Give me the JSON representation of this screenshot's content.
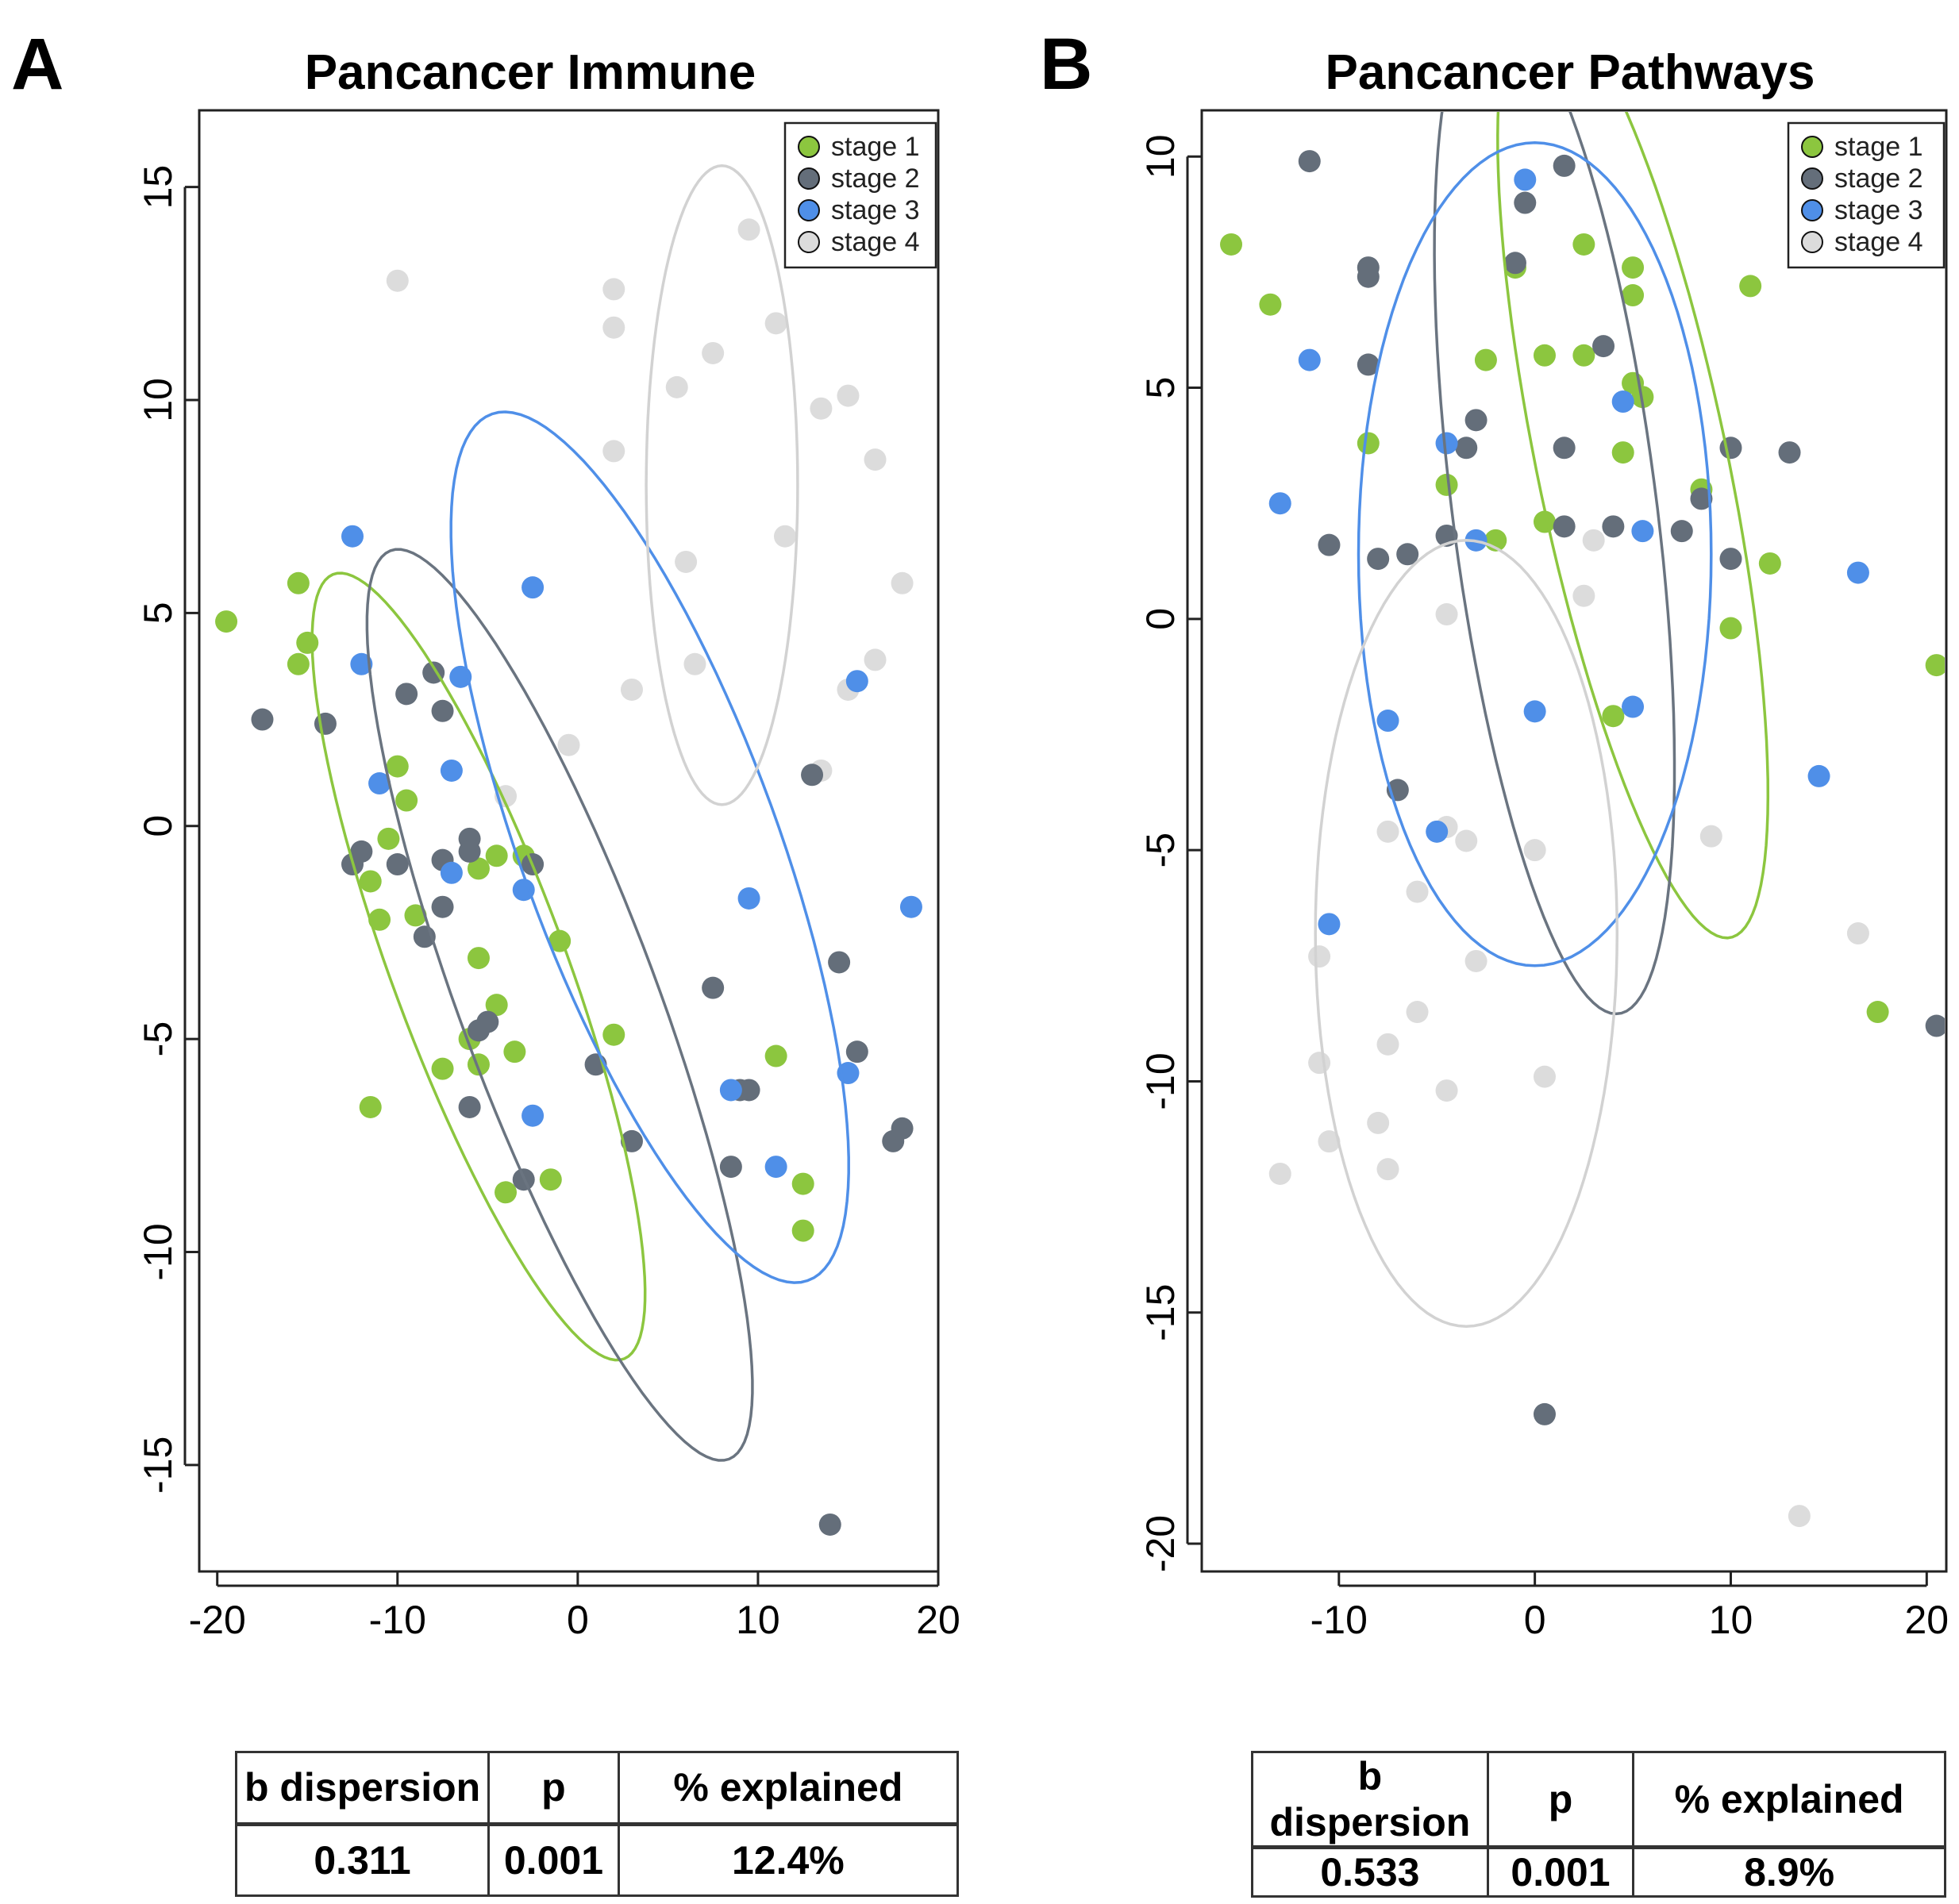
{
  "colors": {
    "stage 1": "#8cc63f",
    "stage 2": "#646e7a",
    "stage 3": "#4f8fe8",
    "stage 4": "#dcdcdc",
    "ellipse stage 1": "#8cc63f",
    "ellipse stage 2": "#6a7480",
    "ellipse stage 3": "#4f8fe8",
    "ellipse stage 4": "#d2d2d2"
  },
  "chart_data": [
    {
      "type": "scatter",
      "panel": "A",
      "title": "Pancancer Immune",
      "xlim": [
        -21,
        20
      ],
      "ylim": [
        -17.5,
        16.8
      ],
      "xticks": [
        -20,
        -10,
        0,
        10,
        20
      ],
      "xtick_labels": [
        "-20",
        "-10",
        "0",
        "10",
        "20"
      ],
      "yticks": [
        -15,
        -10,
        -5,
        0,
        5,
        10,
        15
      ],
      "ytick_labels": [
        "-15",
        "-10",
        "-5",
        "0",
        "5",
        "10",
        "15"
      ],
      "legend": {
        "position": "top-right",
        "entries": [
          "stage 1",
          "stage 2",
          "stage 3",
          "stage 4"
        ]
      },
      "series": [
        {
          "name": "stage 1",
          "points": [
            [
              -19.5,
              4.8
            ],
            [
              -15.5,
              5.7
            ],
            [
              -15,
              4.3
            ],
            [
              -15.5,
              3.8
            ],
            [
              -10,
              1.4
            ],
            [
              -9.5,
              0.6
            ],
            [
              -10.5,
              -0.3
            ],
            [
              -11.5,
              -1.3
            ],
            [
              -11,
              -2.2
            ],
            [
              -9,
              -2.1
            ],
            [
              -5.5,
              -1
            ],
            [
              -4.5,
              -0.7
            ],
            [
              -3,
              -0.7
            ],
            [
              -1,
              -2.7
            ],
            [
              -5.5,
              -3.1
            ],
            [
              -4.5,
              -4.2
            ],
            [
              -6,
              -5
            ],
            [
              -5.5,
              -5.6
            ],
            [
              -3.5,
              -5.3
            ],
            [
              -7.5,
              -5.7
            ],
            [
              -11.5,
              -6.6
            ],
            [
              -1.5,
              -8.3
            ],
            [
              -4,
              -8.6
            ],
            [
              2,
              -4.9
            ],
            [
              11,
              -5.4
            ],
            [
              12.5,
              -8.4
            ],
            [
              12.5,
              -9.5
            ]
          ]
        },
        {
          "name": "stage 2",
          "points": [
            [
              -17.5,
              2.5
            ],
            [
              -14,
              2.4
            ],
            [
              -9.5,
              3.1
            ],
            [
              -8,
              3.6
            ],
            [
              -7.5,
              2.7
            ],
            [
              -12,
              -0.6
            ],
            [
              -12.5,
              -0.9
            ],
            [
              -10,
              -0.9
            ],
            [
              -7.5,
              -0.8
            ],
            [
              -6,
              -0.3
            ],
            [
              -6,
              -0.6
            ],
            [
              -2.5,
              -0.9
            ],
            [
              -8.5,
              -2.6
            ],
            [
              -7.5,
              -1.9
            ],
            [
              -5,
              -4.6
            ],
            [
              -5.5,
              -4.8
            ],
            [
              -6,
              -6.6
            ],
            [
              -3,
              -8.3
            ],
            [
              1,
              -5.6
            ],
            [
              3,
              -7.4
            ],
            [
              7.5,
              -3.8
            ],
            [
              9,
              -6.2
            ],
            [
              9.5,
              -6.2
            ],
            [
              8.5,
              -8
            ],
            [
              13,
              1.2
            ],
            [
              14.5,
              -3.2
            ],
            [
              15.5,
              -5.3
            ],
            [
              17.5,
              -7.4
            ],
            [
              18,
              -7.1
            ],
            [
              14,
              -16.4
            ]
          ]
        },
        {
          "name": "stage 3",
          "points": [
            [
              -12.5,
              6.8
            ],
            [
              -12,
              3.8
            ],
            [
              -6.5,
              3.5
            ],
            [
              -2.5,
              5.6
            ],
            [
              -11,
              1
            ],
            [
              -7,
              1.3
            ],
            [
              -7,
              -1.1
            ],
            [
              -3,
              -1.5
            ],
            [
              -2.5,
              -6.8
            ],
            [
              9.5,
              -1.7
            ],
            [
              8.5,
              -6.2
            ],
            [
              11,
              -8
            ],
            [
              15,
              -5.8
            ],
            [
              15.5,
              3.4
            ],
            [
              18.5,
              -1.9
            ]
          ]
        },
        {
          "name": "stage 4",
          "points": [
            [
              -10,
              12.8
            ],
            [
              2,
              12.6
            ],
            [
              2,
              11.7
            ],
            [
              9.5,
              14
            ],
            [
              11,
              11.8
            ],
            [
              7.5,
              11.1
            ],
            [
              5.5,
              10.3
            ],
            [
              13.5,
              9.8
            ],
            [
              15,
              10.1
            ],
            [
              2,
              8.8
            ],
            [
              16.5,
              8.6
            ],
            [
              11.5,
              6.8
            ],
            [
              6,
              6.2
            ],
            [
              18,
              5.7
            ],
            [
              6.5,
              3.8
            ],
            [
              16.5,
              3.9
            ],
            [
              15,
              3.2
            ],
            [
              3,
              3.2
            ],
            [
              -0.5,
              1.9
            ],
            [
              -4,
              0.7
            ],
            [
              13.5,
              1.3
            ]
          ]
        }
      ],
      "ellipses": [
        {
          "name": "stage 1",
          "center": [
            -5.5,
            -3.3
          ],
          "semi_axes": [
            12.5,
            3.8
          ],
          "rotation_deg": -45
        },
        {
          "name": "stage 2",
          "center": [
            -1,
            -4.2
          ],
          "semi_axes": [
            14.5,
            4.3
          ],
          "rotation_deg": -45
        },
        {
          "name": "stage 3",
          "center": [
            4,
            -0.5
          ],
          "semi_axes": [
            14,
            5.5
          ],
          "rotation_deg": -42
        },
        {
          "name": "stage 4",
          "center": [
            8,
            8
          ],
          "semi_axes": [
            7.5,
            4.2
          ],
          "rotation_deg": 90
        }
      ]
    },
    {
      "type": "scatter",
      "panel": "B",
      "title": "Pancancer Pathways",
      "xlim": [
        -17,
        21
      ],
      "ylim": [
        -20.6,
        11
      ],
      "xticks": [
        -10,
        0,
        10,
        20
      ],
      "xtick_labels": [
        "-10",
        "0",
        "10",
        "20"
      ],
      "yticks": [
        -20,
        -15,
        -10,
        -5,
        0,
        5,
        10
      ],
      "ytick_labels": [
        "-20",
        "-15",
        "-10",
        "-5",
        "0",
        "5",
        "10"
      ],
      "legend": {
        "position": "top-right",
        "entries": [
          "stage 1",
          "stage 2",
          "stage 3",
          "stage 4"
        ]
      },
      "series": [
        {
          "name": "stage 1",
          "points": [
            [
              -15.5,
              8.1
            ],
            [
              -13.5,
              6.8
            ],
            [
              -1,
              7.6
            ],
            [
              -2.5,
              5.6
            ],
            [
              0.5,
              5.7
            ],
            [
              2.5,
              8.1
            ],
            [
              2.5,
              5.7
            ],
            [
              5,
              7.6
            ],
            [
              5,
              7
            ],
            [
              5,
              5.1
            ],
            [
              5.5,
              4.8
            ],
            [
              11,
              7.2
            ],
            [
              -8.5,
              3.8
            ],
            [
              -4.5,
              2.9
            ],
            [
              0.5,
              2.1
            ],
            [
              -2,
              1.7
            ],
            [
              4.5,
              3.6
            ],
            [
              8.5,
              2.8
            ],
            [
              12,
              1.2
            ],
            [
              10,
              -0.2
            ],
            [
              4,
              -2.1
            ],
            [
              17.5,
              -8.5
            ],
            [
              20.5,
              -1
            ]
          ]
        },
        {
          "name": "stage 2",
          "points": [
            [
              -11.5,
              9.9
            ],
            [
              -8.5,
              7.4
            ],
            [
              -8.5,
              7.6
            ],
            [
              -1,
              7.7
            ],
            [
              -0.5,
              9
            ],
            [
              1.5,
              9.8
            ],
            [
              -8.5,
              5.5
            ],
            [
              -3,
              4.3
            ],
            [
              -3.5,
              3.7
            ],
            [
              1.5,
              3.7
            ],
            [
              3.5,
              5.9
            ],
            [
              -4.5,
              1.8
            ],
            [
              -8,
              1.3
            ],
            [
              -10.5,
              1.6
            ],
            [
              -6.5,
              1.4
            ],
            [
              1.5,
              2
            ],
            [
              4,
              2
            ],
            [
              7.5,
              1.9
            ],
            [
              8.5,
              2.6
            ],
            [
              10,
              3.7
            ],
            [
              10,
              1.3
            ],
            [
              13,
              3.6
            ],
            [
              -7,
              -3.7
            ],
            [
              0.5,
              -17.2
            ],
            [
              20.5,
              -8.8
            ]
          ]
        },
        {
          "name": "stage 3",
          "points": [
            [
              -0.5,
              9.5
            ],
            [
              -11.5,
              5.6
            ],
            [
              -13,
              2.5
            ],
            [
              -4.5,
              3.8
            ],
            [
              -3,
              1.7
            ],
            [
              4.5,
              4.7
            ],
            [
              5.5,
              1.9
            ],
            [
              -7.5,
              -2.2
            ],
            [
              0,
              -2
            ],
            [
              5,
              -1.9
            ],
            [
              -5,
              -4.6
            ],
            [
              -10.5,
              -6.6
            ],
            [
              16.5,
              1
            ],
            [
              14.5,
              -3.4
            ]
          ]
        },
        {
          "name": "stage 4",
          "points": [
            [
              3,
              1.7
            ],
            [
              2.5,
              0.5
            ],
            [
              -4.5,
              0.1
            ],
            [
              -4.5,
              -4.5
            ],
            [
              -3.5,
              -4.8
            ],
            [
              -7.5,
              -4.6
            ],
            [
              0,
              -5
            ],
            [
              9,
              -4.7
            ],
            [
              -6,
              -5.9
            ],
            [
              -3,
              -7.4
            ],
            [
              -11,
              -7.3
            ],
            [
              16.5,
              -6.8
            ],
            [
              -6,
              -8.5
            ],
            [
              -7.5,
              -9.2
            ],
            [
              -11,
              -9.6
            ],
            [
              -4.5,
              -10.2
            ],
            [
              0.5,
              -9.9
            ],
            [
              -8,
              -10.9
            ],
            [
              -10.5,
              -11.3
            ],
            [
              -13,
              -12
            ],
            [
              -7.5,
              -11.9
            ],
            [
              13.5,
              -19.4
            ]
          ]
        }
      ],
      "ellipses": [
        {
          "name": "stage 1",
          "center": [
            5,
            3.3
          ],
          "semi_axes": [
            11.5,
            4.4
          ],
          "rotation_deg": -60
        },
        {
          "name": "stage 2",
          "center": [
            1,
            2.4
          ],
          "semi_axes": [
            11.5,
            5
          ],
          "rotation_deg": -70
        },
        {
          "name": "stage 3",
          "center": [
            0,
            1.4
          ],
          "semi_axes": [
            9,
            8.9
          ],
          "rotation_deg": 0
        },
        {
          "name": "stage 4",
          "center": [
            -3.5,
            -6.8
          ],
          "semi_axes": [
            7.7,
            8.5
          ],
          "rotation_deg": 0
        }
      ]
    }
  ],
  "tables": [
    {
      "panel": "A",
      "headers": [
        "b dispersion",
        "p",
        "% explained"
      ],
      "values": [
        "0.311",
        "0.001",
        "12.4%"
      ]
    },
    {
      "panel": "B",
      "headers": [
        "b dispersion",
        "p",
        "% explained"
      ],
      "values": [
        "0.533",
        "0.001",
        "8.9%"
      ]
    }
  ]
}
